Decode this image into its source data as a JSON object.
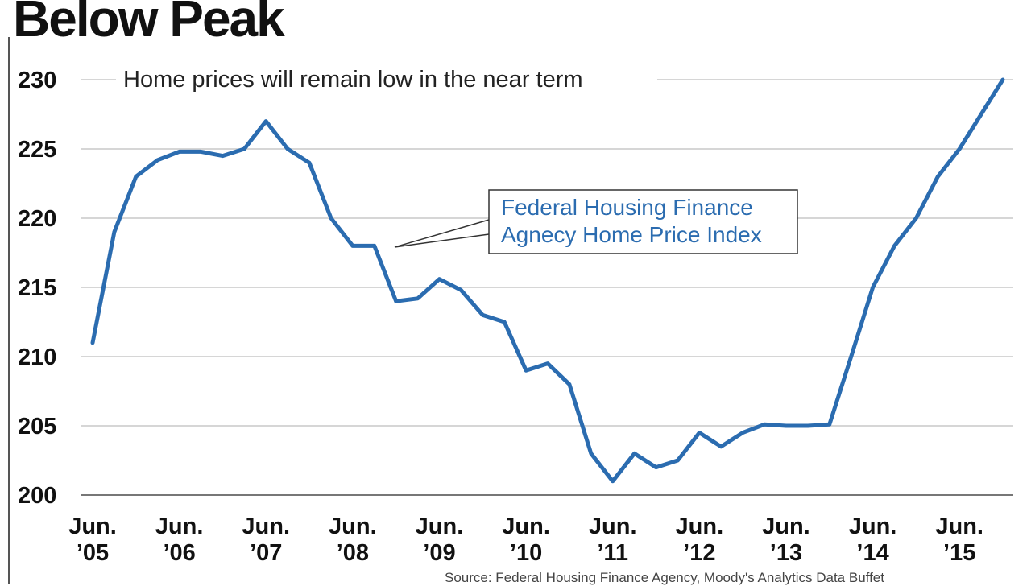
{
  "chart_data": {
    "type": "line",
    "title": "Below Peak",
    "subtitle": "Home prices will remain low in the near term",
    "annotation": [
      "Federal Housing Finance",
      "Agnecy Home Price Index"
    ],
    "source": "Source: Federal Housing Finance Agency, Moody's Analytics Data Buffet",
    "xlabel": "",
    "ylabel": "",
    "ylim": [
      200,
      230
    ],
    "yticks": [
      "200",
      "205",
      "210",
      "215",
      "220",
      "225",
      "230"
    ],
    "xticks": [
      {
        "line1": "Jun.",
        "line2": "’05"
      },
      {
        "line1": "Jun.",
        "line2": "’06"
      },
      {
        "line1": "Jun.",
        "line2": "’07"
      },
      {
        "line1": "Jun.",
        "line2": "’08"
      },
      {
        "line1": "Jun.",
        "line2": "’09"
      },
      {
        "line1": "Jun.",
        "line2": "’10"
      },
      {
        "line1": "Jun.",
        "line2": "’11"
      },
      {
        "line1": "Jun.",
        "line2": "’12"
      },
      {
        "line1": "Jun.",
        "line2": "’13"
      },
      {
        "line1": "Jun.",
        "line2": "’14"
      },
      {
        "line1": "Jun.",
        "line2": "’15"
      }
    ],
    "grid": true,
    "series": [
      {
        "color": "#2b6cb0",
        "points": [
          {
            "x": 2005.5,
            "y": 211
          },
          {
            "x": 2005.75,
            "y": 219
          },
          {
            "x": 2006.0,
            "y": 223
          },
          {
            "x": 2006.25,
            "y": 224.2
          },
          {
            "x": 2006.5,
            "y": 224.8
          },
          {
            "x": 2006.75,
            "y": 224.8
          },
          {
            "x": 2007.0,
            "y": 224.5
          },
          {
            "x": 2007.25,
            "y": 225
          },
          {
            "x": 2007.5,
            "y": 227
          },
          {
            "x": 2007.75,
            "y": 225
          },
          {
            "x": 2008.0,
            "y": 224
          },
          {
            "x": 2008.25,
            "y": 220
          },
          {
            "x": 2008.5,
            "y": 218
          },
          {
            "x": 2008.75,
            "y": 218
          },
          {
            "x": 2009.0,
            "y": 214
          },
          {
            "x": 2009.25,
            "y": 214.2
          },
          {
            "x": 2009.5,
            "y": 215.6
          },
          {
            "x": 2009.75,
            "y": 214.8
          },
          {
            "x": 2010.0,
            "y": 213
          },
          {
            "x": 2010.25,
            "y": 212.5
          },
          {
            "x": 2010.5,
            "y": 209
          },
          {
            "x": 2010.75,
            "y": 209.5
          },
          {
            "x": 2011.0,
            "y": 208
          },
          {
            "x": 2011.25,
            "y": 203
          },
          {
            "x": 2011.5,
            "y": 201
          },
          {
            "x": 2011.75,
            "y": 203
          },
          {
            "x": 2012.0,
            "y": 202
          },
          {
            "x": 2012.25,
            "y": 202.5
          },
          {
            "x": 2012.5,
            "y": 204.5
          },
          {
            "x": 2012.75,
            "y": 203.5
          },
          {
            "x": 2013.0,
            "y": 204.5
          },
          {
            "x": 2013.25,
            "y": 205.1
          },
          {
            "x": 2013.5,
            "y": 205
          },
          {
            "x": 2013.75,
            "y": 205
          },
          {
            "x": 2014.0,
            "y": 205.1
          },
          {
            "x": 2014.25,
            "y": 210
          },
          {
            "x": 2014.5,
            "y": 215
          },
          {
            "x": 2014.75,
            "y": 218
          },
          {
            "x": 2015.0,
            "y": 220
          },
          {
            "x": 2015.25,
            "y": 223
          },
          {
            "x": 2015.5,
            "y": 225
          },
          {
            "x": 2015.75,
            "y": 227.5
          },
          {
            "x": 2016.0,
            "y": 230
          }
        ]
      }
    ]
  }
}
